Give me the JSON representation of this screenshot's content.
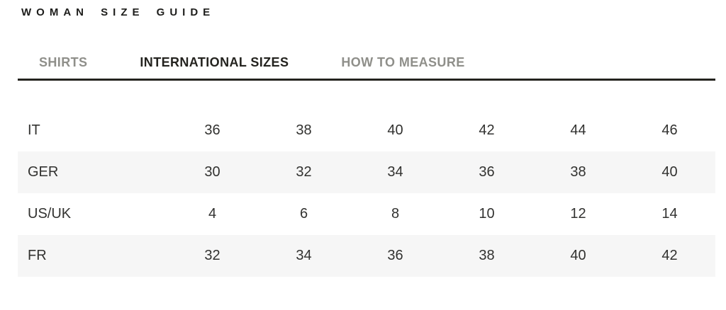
{
  "page": {
    "title": "WOMAN SIZE GUIDE"
  },
  "tabs": [
    {
      "label": "SHIRTS",
      "active": false
    },
    {
      "label": "INTERNATIONAL SIZES",
      "active": true
    },
    {
      "label": "HOW TO MEASURE",
      "active": false
    }
  ],
  "size_table": {
    "rows": [
      {
        "label": "IT",
        "values": [
          "36",
          "38",
          "40",
          "42",
          "44",
          "46"
        ]
      },
      {
        "label": "GER",
        "values": [
          "30",
          "32",
          "34",
          "36",
          "38",
          "40"
        ]
      },
      {
        "label": "US/UK",
        "values": [
          "4",
          "6",
          "8",
          "10",
          "12",
          "14"
        ]
      },
      {
        "label": "FR",
        "values": [
          "32",
          "34",
          "36",
          "38",
          "40",
          "42"
        ]
      }
    ]
  },
  "colors": {
    "active_tab": "#24231f",
    "inactive_tab": "#8f8f8a",
    "divider": "#24231f",
    "row_stripe": "#f6f6f6",
    "table_text": "#323230",
    "title_text": "#1d1d1b",
    "background": "#ffffff"
  }
}
